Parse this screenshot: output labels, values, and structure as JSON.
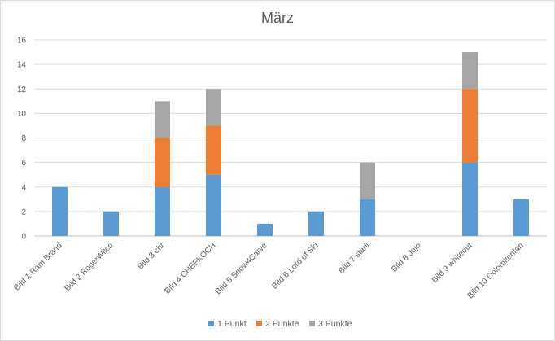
{
  "chart_data": {
    "type": "bar",
    "stacked": true,
    "title": "März",
    "xlabel": "",
    "ylabel": "",
    "ylim": [
      0,
      16
    ],
    "yticks": [
      0,
      2,
      4,
      6,
      8,
      10,
      12,
      14,
      16
    ],
    "grid": true,
    "legend_position": "bottom",
    "categories": [
      "Bild 1 Ram Brand",
      "Bild 2 RogerWilco",
      "Bild 3 chr",
      "Bild 4 CHEFKOCH",
      "Bild 5 Snow4Carve",
      "Bild 6 Lord of Ski",
      "Bild 7 starli",
      "Bild 8 Jojo",
      "Bild 9 whiteout",
      "Bild 10 Dolomitenfan"
    ],
    "series": [
      {
        "name": "1 Punkt",
        "color": "#5b9bd5",
        "values": [
          4,
          2,
          4,
          5,
          1,
          2,
          3,
          0,
          6,
          3
        ]
      },
      {
        "name": "2 Punkte",
        "color": "#ed7d31",
        "values": [
          0,
          0,
          4,
          4,
          0,
          0,
          0,
          0,
          6,
          0
        ]
      },
      {
        "name": "3 Punkte",
        "color": "#a5a5a5",
        "values": [
          0,
          0,
          3,
          3,
          0,
          0,
          3,
          0,
          3,
          0
        ]
      }
    ]
  }
}
